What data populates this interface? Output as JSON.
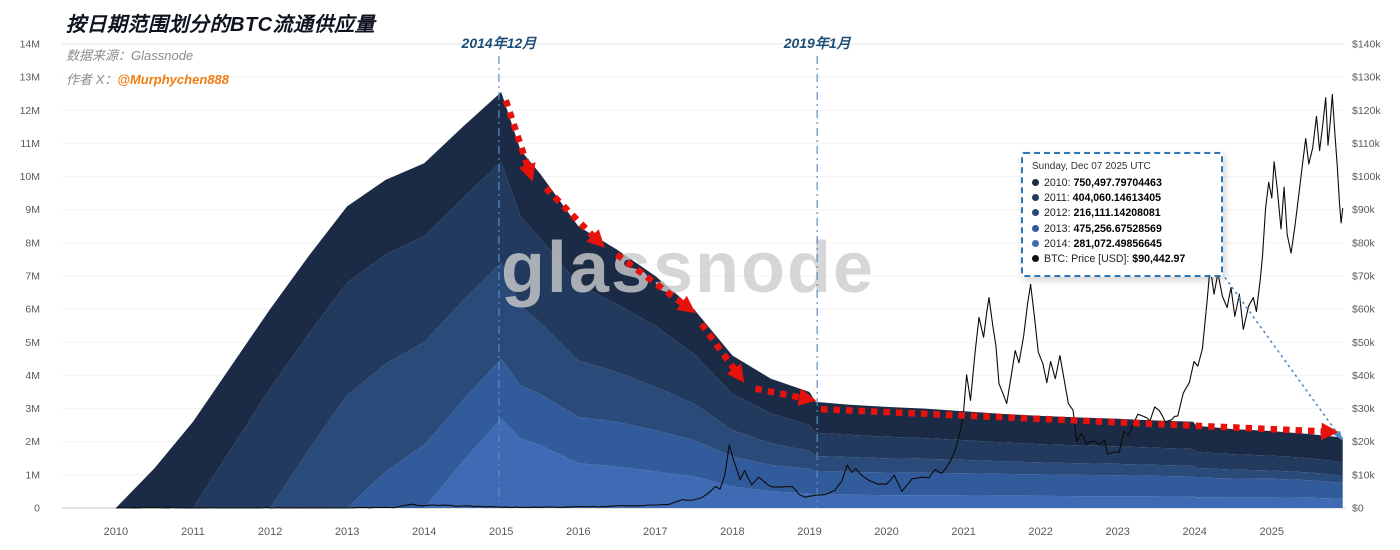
{
  "header": {
    "title": "按日期范围划分的BTC流通供应量",
    "source_label": "数据来源：",
    "source_value": "Glassnode",
    "author_label": "作者 X：",
    "author_value": "@Murphychen888"
  },
  "watermark": "glassnode",
  "annotations": {
    "v1": {
      "label": "2014年12月",
      "year": 2014.97
    },
    "v2": {
      "label": "2019年1月",
      "year": 2019.1
    }
  },
  "tooltip": {
    "title": "Sunday, Dec 07 2025 UTC",
    "rows": [
      {
        "label": "2010:",
        "value": "750,497.79704463",
        "color": "#1b2b45"
      },
      {
        "label": "2011:",
        "value": "404,060.14613405",
        "color": "#223a5e"
      },
      {
        "label": "2012:",
        "value": "216,111.14208081",
        "color": "#2a4a7a"
      },
      {
        "label": "2013:",
        "value": "475,256.67528569",
        "color": "#325b9c"
      },
      {
        "label": "2014:",
        "value": "281,072.49856645",
        "color": "#3f6bb5"
      },
      {
        "label": "BTC: Price [USD]:",
        "value": "$90,442.97",
        "color": "#111111"
      }
    ]
  },
  "chart_data": {
    "type": "area",
    "subtype": "stacked-area-with-price-line",
    "title": "按日期范围划分的BTC流通供应量",
    "units": "supply in millions of BTC (left axis), BTC price USD (right axis)",
    "stack_order": "bottom-to-top",
    "x": [
      2010.0,
      2010.5,
      2011.0,
      2011.5,
      2012.0,
      2012.5,
      2013.0,
      2013.5,
      2014.0,
      2014.5,
      2015.0,
      2015.25,
      2015.5,
      2016.0,
      2016.5,
      2017.0,
      2017.5,
      2018.0,
      2018.5,
      2019.0,
      2019.08,
      2019.5,
      2020.0,
      2020.5,
      2021.0,
      2021.5,
      2022.0,
      2022.5,
      2023.0,
      2023.5,
      2023.98,
      2024.02,
      2024.5,
      2025.0,
      2025.5,
      2025.92
    ],
    "series": [
      {
        "name": "2014",
        "color": "#3f6bb5",
        "values": [
          0,
          0,
          0,
          0,
          0,
          0,
          0,
          0,
          0,
          1.4,
          2.7,
          2.1,
          1.9,
          1.35,
          1.25,
          1.1,
          0.95,
          0.65,
          0.5,
          0.44,
          0.4,
          0.4,
          0.39,
          0.385,
          0.38,
          0.37,
          0.365,
          0.36,
          0.36,
          0.35,
          0.34,
          0.33,
          0.32,
          0.32,
          0.31,
          0.2811
        ]
      },
      {
        "name": "2013",
        "color": "#325b9c",
        "values": [
          0,
          0,
          0,
          0,
          0,
          0,
          0,
          1.1,
          1.9,
          1.85,
          1.8,
          1.6,
          1.55,
          1.4,
          1.35,
          1.25,
          1.1,
          0.9,
          0.8,
          0.74,
          0.7,
          0.69,
          0.68,
          0.675,
          0.67,
          0.66,
          0.65,
          0.64,
          0.63,
          0.62,
          0.61,
          0.59,
          0.57,
          0.56,
          0.53,
          0.4753
        ]
      },
      {
        "name": "2012",
        "color": "#2a4a7a",
        "values": [
          0,
          0,
          0,
          0,
          0,
          1.75,
          3.4,
          3.25,
          3.1,
          3.0,
          2.9,
          2.4,
          2.15,
          1.7,
          1.5,
          1.3,
          1.1,
          0.8,
          0.65,
          0.54,
          0.47,
          0.45,
          0.43,
          0.42,
          0.4,
          0.38,
          0.36,
          0.35,
          0.34,
          0.33,
          0.32,
          0.29,
          0.27,
          0.25,
          0.23,
          0.2161
        ]
      },
      {
        "name": "2011",
        "color": "#223a5e",
        "values": [
          0,
          0,
          0,
          1.8,
          3.6,
          3.5,
          3.4,
          3.3,
          3.2,
          3.1,
          3.05,
          2.7,
          2.55,
          2.3,
          2.05,
          1.85,
          1.5,
          1.1,
          0.9,
          0.78,
          0.7,
          0.67,
          0.65,
          0.63,
          0.6,
          0.57,
          0.55,
          0.54,
          0.53,
          0.52,
          0.51,
          0.48,
          0.46,
          0.45,
          0.43,
          0.4041
        ]
      },
      {
        "name": "2010",
        "color": "#1b2b45",
        "values": [
          0,
          1.2,
          2.6,
          2.5,
          2.4,
          2.35,
          2.3,
          2.25,
          2.2,
          2.15,
          2.1,
          2.0,
          1.95,
          1.75,
          1.65,
          1.5,
          1.35,
          1.15,
          1.05,
          1.0,
          0.93,
          0.91,
          0.9,
          0.89,
          0.87,
          0.86,
          0.855,
          0.84,
          0.83,
          0.82,
          0.82,
          0.79,
          0.76,
          0.74,
          0.73,
          0.7505
        ]
      }
    ],
    "price_line": {
      "name": "BTC: Price [USD]",
      "color": "#0b0b0b",
      "points": [
        [
          2010.0,
          1
        ],
        [
          2011.0,
          5
        ],
        [
          2012.0,
          9
        ],
        [
          2012.9,
          13
        ],
        [
          2013.25,
          120
        ],
        [
          2013.6,
          100
        ],
        [
          2013.85,
          1150
        ],
        [
          2013.95,
          720
        ],
        [
          2014.15,
          830
        ],
        [
          2014.5,
          590
        ],
        [
          2014.9,
          330
        ],
        [
          2015.1,
          215
        ],
        [
          2015.3,
          245
        ],
        [
          2015.55,
          270
        ],
        [
          2015.85,
          330
        ],
        [
          2016.0,
          430
        ],
        [
          2016.3,
          420
        ],
        [
          2016.5,
          670
        ],
        [
          2016.75,
          620
        ],
        [
          2016.95,
          900
        ],
        [
          2017.1,
          1050
        ],
        [
          2017.2,
          1230
        ],
        [
          2017.35,
          2550
        ],
        [
          2017.45,
          2350
        ],
        [
          2017.58,
          2900
        ],
        [
          2017.68,
          4300
        ],
        [
          2017.78,
          6500
        ],
        [
          2017.84,
          5700
        ],
        [
          2017.9,
          9800
        ],
        [
          2017.96,
          19000
        ],
        [
          2018.02,
          14200
        ],
        [
          2018.1,
          8500
        ],
        [
          2018.16,
          11300
        ],
        [
          2018.25,
          7000
        ],
        [
          2018.34,
          9300
        ],
        [
          2018.5,
          6450
        ],
        [
          2018.64,
          6300
        ],
        [
          2018.78,
          6500
        ],
        [
          2018.87,
          4000
        ],
        [
          2018.95,
          3250
        ],
        [
          2019.05,
          3700
        ],
        [
          2019.2,
          4050
        ],
        [
          2019.33,
          5300
        ],
        [
          2019.42,
          8100
        ],
        [
          2019.49,
          12900
        ],
        [
          2019.55,
          10700
        ],
        [
          2019.6,
          11900
        ],
        [
          2019.68,
          9800
        ],
        [
          2019.78,
          8200
        ],
        [
          2019.88,
          7200
        ],
        [
          2020.0,
          7200
        ],
        [
          2020.1,
          9900
        ],
        [
          2020.2,
          5000
        ],
        [
          2020.33,
          8800
        ],
        [
          2020.45,
          9300
        ],
        [
          2020.55,
          9100
        ],
        [
          2020.63,
          11600
        ],
        [
          2020.72,
          10500
        ],
        [
          2020.82,
          13800
        ],
        [
          2020.9,
          18000
        ],
        [
          2020.96,
          23500
        ],
        [
          2021.0,
          29200
        ],
        [
          2021.04,
          40200
        ],
        [
          2021.09,
          32500
        ],
        [
          2021.15,
          47000
        ],
        [
          2021.2,
          57500
        ],
        [
          2021.26,
          51500
        ],
        [
          2021.3,
          59000
        ],
        [
          2021.33,
          63500
        ],
        [
          2021.38,
          55000
        ],
        [
          2021.42,
          49000
        ],
        [
          2021.46,
          37500
        ],
        [
          2021.52,
          34000
        ],
        [
          2021.56,
          31500
        ],
        [
          2021.62,
          40000
        ],
        [
          2021.67,
          47500
        ],
        [
          2021.72,
          43800
        ],
        [
          2021.78,
          52000
        ],
        [
          2021.83,
          61500
        ],
        [
          2021.87,
          67500
        ],
        [
          2021.92,
          57500
        ],
        [
          2021.97,
          47000
        ],
        [
          2022.03,
          43500
        ],
        [
          2022.08,
          37800
        ],
        [
          2022.13,
          44200
        ],
        [
          2022.19,
          39000
        ],
        [
          2022.25,
          46000
        ],
        [
          2022.3,
          39500
        ],
        [
          2022.36,
          31500
        ],
        [
          2022.42,
          29500
        ],
        [
          2022.47,
          20100
        ],
        [
          2022.53,
          22500
        ],
        [
          2022.6,
          19200
        ],
        [
          2022.68,
          20200
        ],
        [
          2022.76,
          19000
        ],
        [
          2022.83,
          20500
        ],
        [
          2022.87,
          16200
        ],
        [
          2022.95,
          16900
        ],
        [
          2023.02,
          16800
        ],
        [
          2023.08,
          23200
        ],
        [
          2023.14,
          21900
        ],
        [
          2023.2,
          25000
        ],
        [
          2023.26,
          28300
        ],
        [
          2023.34,
          27600
        ],
        [
          2023.42,
          26300
        ],
        [
          2023.48,
          30500
        ],
        [
          2023.54,
          29400
        ],
        [
          2023.62,
          25900
        ],
        [
          2023.7,
          26600
        ],
        [
          2023.78,
          27800
        ],
        [
          2023.85,
          34600
        ],
        [
          2023.93,
          37800
        ],
        [
          2023.99,
          44200
        ],
        [
          2024.04,
          42800
        ],
        [
          2024.1,
          48000
        ],
        [
          2024.16,
          62500
        ],
        [
          2024.2,
          73000
        ],
        [
          2024.25,
          64500
        ],
        [
          2024.3,
          70800
        ],
        [
          2024.36,
          63800
        ],
        [
          2024.42,
          60500
        ],
        [
          2024.47,
          66500
        ],
        [
          2024.52,
          57800
        ],
        [
          2024.58,
          64500
        ],
        [
          2024.63,
          53900
        ],
        [
          2024.7,
          61000
        ],
        [
          2024.76,
          63500
        ],
        [
          2024.8,
          59300
        ],
        [
          2024.85,
          68800
        ],
        [
          2024.88,
          76000
        ],
        [
          2024.92,
          90500
        ],
        [
          2024.96,
          98300
        ],
        [
          2025.0,
          93500
        ],
        [
          2025.03,
          104500
        ],
        [
          2025.07,
          96500
        ],
        [
          2025.12,
          84200
        ],
        [
          2025.16,
          96800
        ],
        [
          2025.2,
          82500
        ],
        [
          2025.25,
          76900
        ],
        [
          2025.3,
          85000
        ],
        [
          2025.35,
          94500
        ],
        [
          2025.4,
          104000
        ],
        [
          2025.44,
          111500
        ],
        [
          2025.48,
          103800
        ],
        [
          2025.53,
          108500
        ],
        [
          2025.58,
          118200
        ],
        [
          2025.62,
          107800
        ],
        [
          2025.66,
          115500
        ],
        [
          2025.7,
          123800
        ],
        [
          2025.73,
          109500
        ],
        [
          2025.76,
          117000
        ],
        [
          2025.785,
          124800
        ],
        [
          2025.82,
          112500
        ],
        [
          2025.85,
          103000
        ],
        [
          2025.88,
          91500
        ],
        [
          2025.9,
          86000
        ],
        [
          2025.92,
          90443
        ]
      ]
    },
    "left_axis": {
      "max_millions": 14,
      "ticks": [
        "0",
        "1M",
        "2M",
        "3M",
        "4M",
        "5M",
        "6M",
        "7M",
        "8M",
        "9M",
        "10M",
        "11M",
        "12M",
        "13M",
        "14M"
      ]
    },
    "right_axis": {
      "max_usd": 140000,
      "ticks": [
        "$0",
        "$10k",
        "$20k",
        "$30k",
        "$40k",
        "$50k",
        "$60k",
        "$70k",
        "$80k",
        "$90k",
        "$100k",
        "$110k",
        "$120k",
        "$130k",
        "$140k"
      ]
    },
    "x_ticks": [
      2010,
      2011,
      2012,
      2013,
      2014,
      2015,
      2016,
      2017,
      2018,
      2019,
      2020,
      2021,
      2022,
      2023,
      2024,
      2025
    ],
    "grid": "faint-horizontal",
    "trend_color": "#e8120d",
    "pointer_color": "#4f8ac9",
    "trend_arrows": [
      {
        "from": [
          2015.06,
          12.3
        ],
        "to": [
          2015.38,
          10.05
        ]
      },
      {
        "from": [
          2015.58,
          9.65
        ],
        "to": [
          2016.28,
          8.0
        ]
      },
      {
        "from": [
          2016.5,
          7.65
        ],
        "to": [
          2017.45,
          6.0
        ]
      },
      {
        "from": [
          2017.6,
          5.55
        ],
        "to": [
          2018.1,
          3.95
        ]
      },
      {
        "from": [
          2018.3,
          3.6
        ],
        "to": [
          2019.0,
          3.28
        ]
      },
      {
        "from": [
          2019.15,
          2.98
        ],
        "to": [
          2025.78,
          2.3
        ]
      }
    ],
    "pointer_arrow": {
      "from": [
        2024.3,
        7.25
      ],
      "to": [
        2025.9,
        2.1
      ]
    }
  }
}
